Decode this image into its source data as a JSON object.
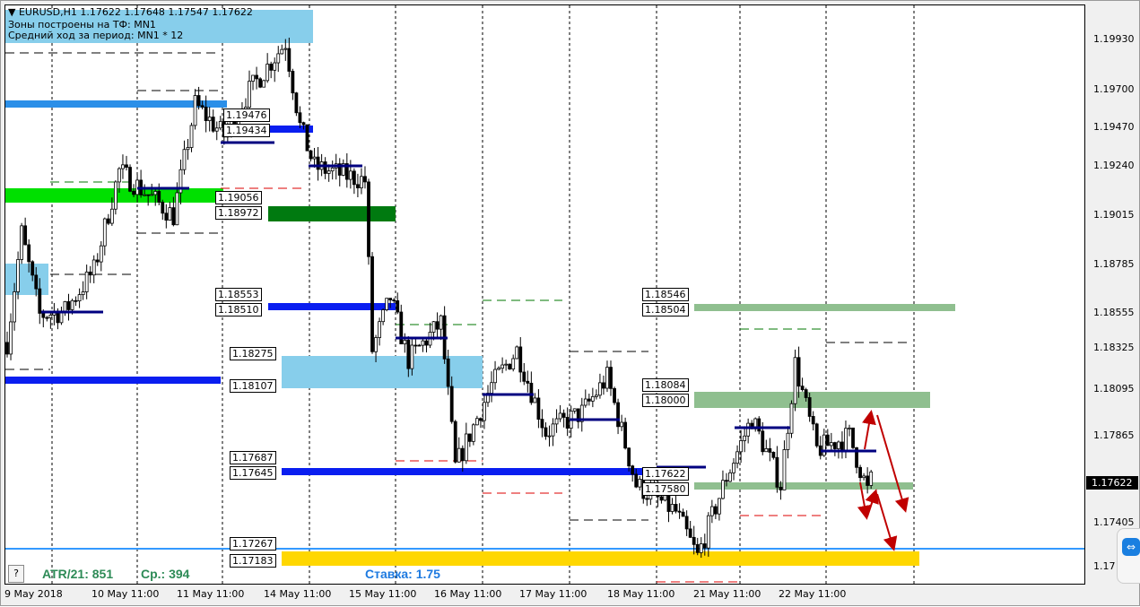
{
  "header": {
    "symbol_line": "EURUSD,H1  1.17622 1.17648 1.17547 1.17622",
    "zones_line": "Зоны построены на ТФ: MN1",
    "avg_line": "Средний ход за период: MN1 * 12"
  },
  "price_scale": [
    "1.19930",
    "1.19700",
    "1.19470",
    "1.19240",
    "1.19015",
    "1.18785",
    "1.18555",
    "1.18325",
    "1.18095",
    "1.17865",
    "1.17405",
    "1.17"
  ],
  "current_price": "1.17622",
  "time_axis": [
    "9 May 2018",
    "10 May 11:00",
    "11 May 11:00",
    "14 May 11:00",
    "15 May 11:00",
    "16 May 11:00",
    "17 May 11:00",
    "18 May 11:00",
    "21 May 11:00",
    "22 May 11:00"
  ],
  "level_labels": [
    "1.19476",
    "1.19434",
    "1.19056",
    "1.18972",
    "1.18553",
    "1.18510",
    "1.18275",
    "1.18107",
    "1.17687",
    "1.17645",
    "1.17267",
    "1.17183",
    "1.18546",
    "1.18504",
    "1.18084",
    "1.18000",
    "1.17622",
    "1.17580"
  ],
  "footer": {
    "help_button": "?",
    "atr": "ATR/21: 851",
    "avg": "Ср.: 394",
    "rate": "Ставка: 1.75"
  },
  "colors": {
    "zone_blue": "#0a1ef0",
    "zone_lightblue": "#87ceeb",
    "zone_green": "#00e000",
    "zone_darkgreen": "#007a10",
    "zone_sage": "#8fbf8f",
    "zone_yellow": "#ffd700",
    "line_blue": "#3399ff",
    "arrow_red": "#c00000",
    "atr_green": "#2e8b57",
    "rate_blue": "#1e7ae0"
  },
  "chart_data": {
    "type": "candlestick",
    "symbol": "EURUSD",
    "timeframe": "H1",
    "ylim": [
      1.1712,
      1.2005
    ],
    "approx_close_path": [
      [
        0,
        1.1833
      ],
      [
        4,
        1.1889
      ],
      [
        9,
        1.1847
      ],
      [
        16,
        1.1849
      ],
      [
        24,
        1.187
      ],
      [
        31,
        1.1921
      ],
      [
        46,
        1.1898
      ],
      [
        52,
        1.1955
      ],
      [
        60,
        1.1939
      ],
      [
        67,
        1.1962
      ],
      [
        77,
        1.1987
      ],
      [
        81,
        1.1944
      ],
      [
        85,
        1.1923
      ],
      [
        99,
        1.1916
      ],
      [
        101,
        1.1829
      ],
      [
        106,
        1.1856
      ],
      [
        111,
        1.1824
      ],
      [
        120,
        1.1843
      ],
      [
        124,
        1.1769
      ],
      [
        134,
        1.1811
      ],
      [
        141,
        1.1829
      ],
      [
        149,
        1.1787
      ],
      [
        159,
        1.1797
      ],
      [
        166,
        1.1815
      ],
      [
        174,
        1.176
      ],
      [
        185,
        1.1746
      ],
      [
        191,
        1.1723
      ],
      [
        199,
        1.1764
      ],
      [
        206,
        1.1794
      ],
      [
        214,
        1.176
      ],
      [
        218,
        1.1822
      ],
      [
        224,
        1.1778
      ],
      [
        233,
        1.1785
      ],
      [
        238,
        1.1757
      ],
      [
        239,
        1.17622
      ]
    ]
  }
}
